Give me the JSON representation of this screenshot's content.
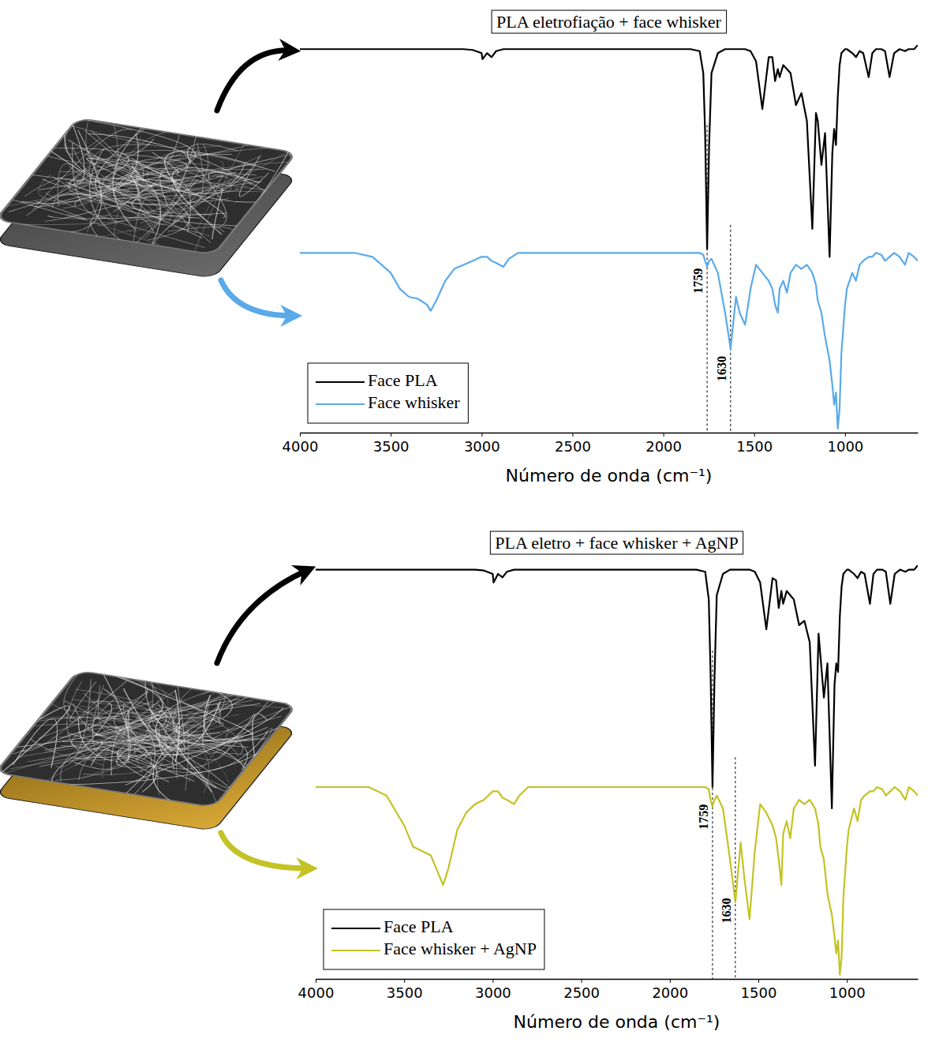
{
  "chart_data": [
    {
      "type": "line",
      "title": "PLA eletrofiação + face whisker",
      "x_label": "Número de onda (cm⁻¹)",
      "x": [
        4000,
        3700,
        3600,
        3500,
        3450,
        3400,
        3350,
        3300,
        3280,
        3250,
        3200,
        3150,
        3100,
        3050,
        3000,
        2995,
        2970,
        2945,
        2920,
        2880,
        2850,
        2800,
        2500,
        2000,
        1850,
        1800,
        1780,
        1770,
        1759,
        1748,
        1735,
        1700,
        1660,
        1630,
        1600,
        1580,
        1550,
        1520,
        1490,
        1455,
        1420,
        1400,
        1385,
        1370,
        1360,
        1340,
        1320,
        1300,
        1270,
        1240,
        1210,
        1180,
        1160,
        1150,
        1130,
        1110,
        1085,
        1070,
        1060,
        1050,
        1040,
        1030,
        1020,
        1000,
        990,
        960,
        940,
        920,
        900,
        870,
        850,
        830,
        800,
        780,
        755,
        730,
        700,
        670,
        650,
        620,
        600
      ],
      "series": [
        {
          "name": "Face PLA",
          "color": "#000000",
          "values": [
            96,
            96,
            96,
            96,
            96,
            96,
            96,
            96,
            96,
            96,
            96,
            96,
            96,
            95.8,
            95,
            93.5,
            95,
            94,
            95.5,
            96,
            96,
            96,
            96,
            96,
            96,
            95.5,
            90,
            75,
            46,
            72,
            90,
            95,
            96,
            96,
            96,
            96,
            96,
            95.5,
            93,
            81,
            94,
            94,
            88,
            91,
            89,
            92,
            91,
            90,
            82,
            85,
            78,
            51,
            80,
            78,
            67,
            75,
            44,
            70,
            76,
            72,
            84,
            92,
            95,
            96,
            96,
            95,
            94,
            95.5,
            95,
            89,
            95,
            96,
            96,
            95.5,
            89,
            95,
            96,
            95.5,
            96,
            96,
            97
          ]
        },
        {
          "name": "Face whisker",
          "color": "#5aaaea",
          "values": [
            45,
            45,
            44,
            40,
            36,
            34,
            33.5,
            32,
            30.5,
            33,
            38,
            41,
            42,
            43,
            44,
            44,
            44,
            43,
            42.5,
            41.5,
            43.5,
            45,
            45,
            45,
            45,
            45,
            44.5,
            43,
            41.5,
            43,
            43.5,
            40,
            30,
            21,
            34,
            30,
            27,
            36,
            42,
            40,
            38,
            36,
            32,
            30,
            36,
            38,
            35,
            40,
            42,
            41,
            42,
            40,
            37,
            33,
            30,
            24,
            18,
            12,
            7,
            10,
            1,
            6,
            20,
            32,
            36,
            40,
            38,
            42,
            43,
            44,
            44,
            45,
            44.5,
            43,
            44,
            45,
            44,
            42,
            45,
            44,
            43
          ]
        }
      ],
      "xlim": [
        4000,
        600
      ],
      "xticks": [
        4000,
        3500,
        3000,
        2500,
        2000,
        1500,
        1000
      ],
      "ylim": [
        0,
        100
      ],
      "tick_labels": "x",
      "legend": "lower left",
      "annotations": [
        {
          "x": 1759,
          "text": "1759"
        },
        {
          "x": 1630,
          "text": "1630"
        }
      ]
    },
    {
      "type": "line",
      "title": "PLA eletro + face whisker + AgNP",
      "x_label": "Número de onda (cm⁻¹)",
      "x": [
        4000,
        3700,
        3600,
        3500,
        3450,
        3400,
        3350,
        3300,
        3280,
        3250,
        3200,
        3150,
        3100,
        3050,
        3000,
        2995,
        2970,
        2945,
        2920,
        2880,
        2850,
        2800,
        2500,
        2000,
        1850,
        1800,
        1780,
        1770,
        1759,
        1748,
        1735,
        1700,
        1660,
        1630,
        1600,
        1580,
        1550,
        1520,
        1490,
        1455,
        1420,
        1400,
        1385,
        1370,
        1360,
        1340,
        1320,
        1300,
        1270,
        1240,
        1210,
        1180,
        1160,
        1150,
        1130,
        1110,
        1085,
        1070,
        1060,
        1050,
        1040,
        1030,
        1020,
        1000,
        990,
        960,
        940,
        920,
        900,
        870,
        850,
        830,
        800,
        780,
        755,
        730,
        700,
        670,
        650,
        620,
        600
      ],
      "series": [
        {
          "name": "Face PLA",
          "color": "#000000",
          "values": [
            96,
            96,
            96,
            96,
            96,
            96,
            96,
            96,
            96,
            96,
            96,
            96,
            96,
            95.8,
            95,
            93,
            95,
            94.2,
            95.5,
            96,
            96,
            96,
            96,
            96,
            96,
            95.5,
            89,
            72,
            45,
            70,
            90,
            95,
            96,
            96,
            96,
            96,
            96,
            95.5,
            93,
            82,
            94,
            93.5,
            87,
            91,
            88,
            91,
            90,
            89,
            83,
            84,
            79,
            50,
            81,
            76,
            66,
            74,
            40,
            69,
            74,
            72,
            85,
            92,
            95,
            96,
            96,
            95,
            94,
            95.5,
            95,
            88,
            95,
            96,
            96,
            95.5,
            88,
            95,
            96,
            95.5,
            96,
            96,
            97
          ]
        },
        {
          "name": "Face whisker + AgNP",
          "color": "#c3c325",
          "values": [
            45,
            45,
            43,
            36,
            31,
            30,
            29,
            24,
            22,
            26,
            35,
            39,
            41,
            42,
            44,
            44,
            44,
            42.5,
            42,
            41,
            43,
            45,
            45,
            45,
            45,
            45,
            44.5,
            42,
            40.5,
            42,
            43,
            40,
            28,
            18,
            32,
            24,
            14,
            30,
            41,
            39,
            36,
            33,
            28,
            22,
            34,
            37,
            33,
            40,
            42,
            41,
            42,
            40,
            36,
            31,
            28,
            20,
            15,
            10,
            6,
            9,
            1,
            5,
            19,
            31,
            35,
            40,
            37,
            42,
            43,
            44,
            44,
            45,
            44.5,
            43,
            44,
            45,
            44,
            42,
            45,
            44,
            43
          ]
        }
      ],
      "xlim": [
        4000,
        600
      ],
      "xticks": [
        4000,
        3500,
        3000,
        2500,
        2000,
        1500,
        1000
      ],
      "ylim": [
        0,
        100
      ],
      "tick_labels": "x",
      "legend": "lower left",
      "annotations": [
        {
          "x": 1759,
          "text": "1759"
        },
        {
          "x": 1630,
          "text": "1630"
        }
      ]
    }
  ]
}
